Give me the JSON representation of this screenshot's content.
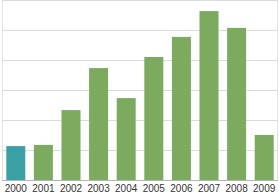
{
  "chart_data": {
    "type": "bar",
    "categories": [
      "2000",
      "2001",
      "2002",
      "2003",
      "2004",
      "2005",
      "2006",
      "2007",
      "2008",
      "2009"
    ],
    "values": [
      1.13,
      1.17,
      2.33,
      3.73,
      2.73,
      4.1,
      4.77,
      5.63,
      5.07,
      1.5
    ],
    "colors": [
      "#3aa0a3",
      "#7cab5f",
      "#7cab5f",
      "#7cab5f",
      "#7cab5f",
      "#7cab5f",
      "#7cab5f",
      "#7cab5f",
      "#7cab5f",
      "#7cab5f"
    ],
    "ylim": [
      0,
      6
    ],
    "yticks": [
      0,
      1,
      2,
      3,
      4,
      5,
      6
    ],
    "grid": true,
    "tick_labels": "x"
  }
}
